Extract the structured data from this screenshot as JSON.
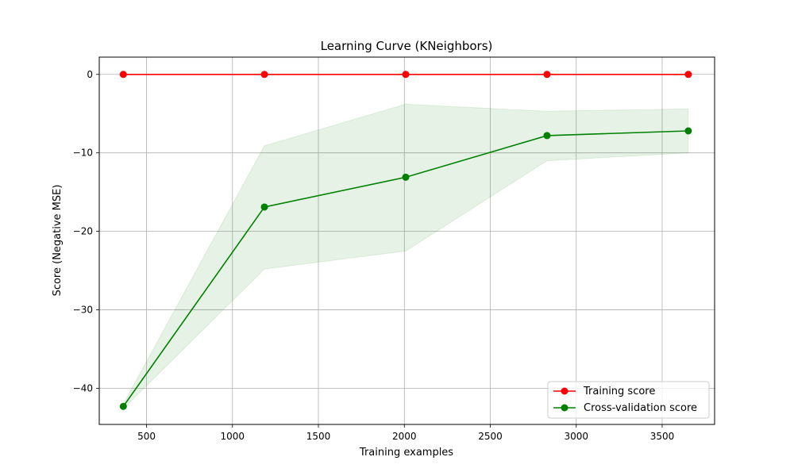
{
  "chart_data": {
    "type": "line",
    "title": "Learning Curve (KNeighbors)",
    "xlabel": "Training examples",
    "ylabel": "Score (Negative MSE)",
    "xlim": [
      225,
      3805
    ],
    "ylim": [
      -44.6,
      2.2
    ],
    "xticks": [
      500,
      1000,
      1500,
      2000,
      2500,
      3000,
      3500
    ],
    "yticks": [
      0,
      -10,
      -20,
      -30,
      -40
    ],
    "grid": true,
    "legend_position": "lower-right",
    "x": [
      365,
      1186,
      2008,
      2830,
      3652
    ],
    "series": [
      {
        "name": "Training score",
        "color": "#ff0000",
        "values": [
          0,
          0,
          0,
          0,
          0
        ],
        "band_lower": [
          0,
          0,
          0,
          0,
          0
        ],
        "band_upper": [
          0,
          0,
          0,
          0,
          0
        ]
      },
      {
        "name": "Cross-validation score",
        "color": "#008000",
        "values": [
          -42.3,
          -16.9,
          -13.1,
          -7.8,
          -7.2
        ],
        "band_lower": [
          -42.6,
          -24.8,
          -22.5,
          -11.0,
          -10.0
        ],
        "band_upper": [
          -42.0,
          -9.1,
          -3.8,
          -4.7,
          -4.4
        ]
      }
    ]
  }
}
